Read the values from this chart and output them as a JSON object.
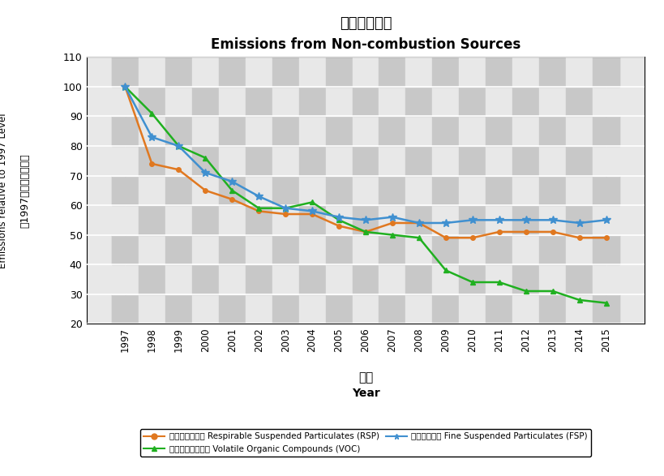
{
  "title_chinese": "非燃燒源排放",
  "title_english": "Emissions from Non-combustion Sources",
  "xlabel_chinese": "年份",
  "xlabel_english": "Year",
  "ylabel_chinese": "與1997年相比的排放量",
  "ylabel_english": "Emissions relative to 1997 Level",
  "years": [
    1997,
    1998,
    1999,
    2000,
    2001,
    2002,
    2003,
    2004,
    2005,
    2006,
    2007,
    2008,
    2009,
    2010,
    2011,
    2012,
    2013,
    2014,
    2015
  ],
  "RSP": [
    100,
    74,
    72,
    65,
    62,
    58,
    57,
    57,
    53,
    51,
    54,
    54,
    49,
    49,
    51,
    51,
    51,
    49,
    49
  ],
  "VOC": [
    100,
    91,
    80,
    76,
    65,
    59,
    59,
    61,
    55,
    51,
    50,
    49,
    38,
    34,
    34,
    31,
    31,
    28,
    27
  ],
  "FSP": [
    100,
    83,
    80,
    71,
    68,
    63,
    59,
    58,
    56,
    55,
    56,
    54,
    54,
    55,
    55,
    55,
    55,
    54,
    55
  ],
  "RSP_color": "#E07820",
  "VOC_color": "#20B020",
  "FSP_color": "#4090D0",
  "ylim_min": 20,
  "ylim_max": 110,
  "yticks": [
    20,
    30,
    40,
    50,
    60,
    70,
    80,
    90,
    100,
    110
  ],
  "checker_light": "#E8E8E8",
  "checker_dark": "#C8C8C8",
  "legend_RSP": "可吸入懸浮粒子 Respirable Suspended Particulates (RSP)",
  "legend_VOC": "揮發性有機化合物 Volatile Organic Compounds (VOC)",
  "legend_FSP": "微細懸浮粒子 Fine Suspended Particulates (FSP)"
}
